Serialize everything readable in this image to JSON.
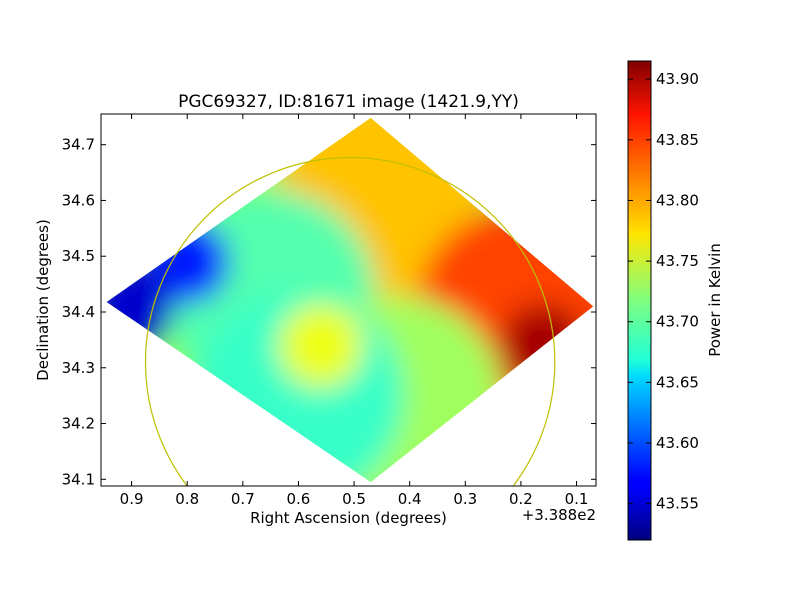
{
  "chart_data": {
    "type": "heatmap",
    "title": "PGC69327, ID:81671 image (1421.9,YY)",
    "xlabel": "Right Ascension (degrees)",
    "ylabel": "Declination (degrees)",
    "x_offset_label": "+3.388e2",
    "xlim": [
      0.955,
      0.065
    ],
    "ylim": [
      34.088,
      34.755
    ],
    "x_ticks": [
      0.9,
      0.8,
      0.7,
      0.6,
      0.5,
      0.4,
      0.3,
      0.2,
      0.1
    ],
    "x_tick_labels": [
      "0.9",
      "0.8",
      "0.7",
      "0.6",
      "0.5",
      "0.4",
      "0.3",
      "0.2",
      "0.1"
    ],
    "y_ticks": [
      34.1,
      34.2,
      34.3,
      34.4,
      34.5,
      34.6,
      34.7
    ],
    "y_tick_labels": [
      "34.1",
      "34.2",
      "34.3",
      "34.4",
      "34.5",
      "34.6",
      "34.7"
    ],
    "grid": false,
    "colormap": "jet",
    "colorbar": {
      "label": "Power in Kelvin",
      "range": [
        43.52,
        43.915
      ],
      "ticks": [
        43.55,
        43.6,
        43.65,
        43.7,
        43.75,
        43.8,
        43.85,
        43.9
      ],
      "tick_labels": [
        "43.55",
        "43.60",
        "43.65",
        "43.70",
        "43.75",
        "43.80",
        "43.85",
        "43.90"
      ]
    },
    "coverage_region": {
      "shape": "diamond",
      "vertices_ra_dec": [
        [
          0.945,
          34.418
        ],
        [
          0.47,
          34.748
        ],
        [
          0.07,
          34.41
        ],
        [
          0.47,
          34.095
        ]
      ]
    },
    "beam_circle": {
      "center_ra_dec": [
        0.507,
        34.31
      ],
      "radius_deg": 0.368,
      "color": "#bfbf00"
    },
    "regions": [
      {
        "name": "north-east-quadrant",
        "center_ra_dec": [
          0.455,
          34.6
        ],
        "value": 43.79
      },
      {
        "name": "east-quadrant",
        "center_ra_dec": [
          0.2,
          34.4
        ],
        "value": 43.84
      },
      {
        "name": "east-hotspot",
        "center_ra_dec": [
          0.16,
          34.34
        ],
        "value": 43.9
      },
      {
        "name": "west-quadrant",
        "center_ra_dec": [
          0.65,
          34.43
        ],
        "value": 43.7
      },
      {
        "name": "west-coldspot",
        "center_ra_dec": [
          0.8,
          34.49
        ],
        "value": 43.58
      },
      {
        "name": "west-edge",
        "center_ra_dec": [
          0.9,
          34.41
        ],
        "value": 43.55
      },
      {
        "name": "south-quadrant",
        "center_ra_dec": [
          0.42,
          34.24
        ],
        "value": 43.73
      },
      {
        "name": "south-west-quadrant",
        "center_ra_dec": [
          0.6,
          34.25
        ],
        "value": 43.69
      },
      {
        "name": "central-warm-spot",
        "center_ra_dec": [
          0.56,
          34.34
        ],
        "value": 43.76
      }
    ]
  }
}
